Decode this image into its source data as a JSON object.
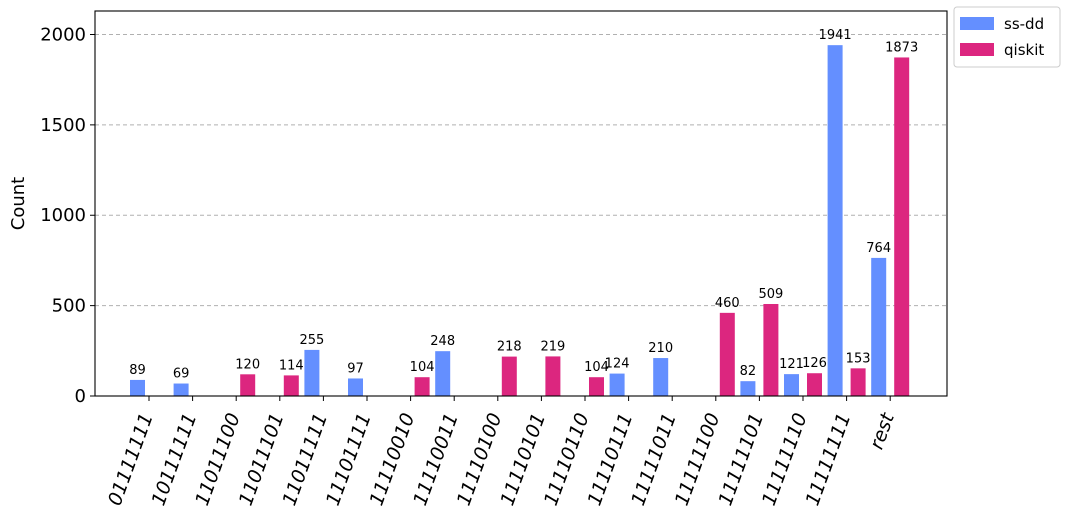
{
  "chart_data": {
    "type": "bar",
    "title": "",
    "xlabel": "",
    "ylabel": "Count",
    "ylim": [
      0,
      2130
    ],
    "yticks": [
      0,
      500,
      1000,
      1500,
      2000
    ],
    "grid": "y",
    "legend_position": "outside-top-right",
    "categories": [
      "01111111",
      "10111111",
      "11011100",
      "11011101",
      "11011111",
      "11101111",
      "11110010",
      "11110011",
      "11110100",
      "11110101",
      "11110110",
      "11110111",
      "11111011",
      "11111100",
      "11111101",
      "11111110",
      "11111111",
      "rest"
    ],
    "series": [
      {
        "name": "ss-dd",
        "color": "#648fff",
        "values": [
          89,
          69,
          null,
          null,
          255,
          97,
          null,
          248,
          null,
          null,
          null,
          124,
          210,
          null,
          82,
          121,
          1941,
          764
        ]
      },
      {
        "name": "qiskit",
        "color": "#dc267f",
        "values": [
          null,
          null,
          120,
          114,
          null,
          null,
          104,
          null,
          218,
          219,
          104,
          null,
          null,
          460,
          509,
          126,
          153,
          1873
        ]
      }
    ]
  }
}
